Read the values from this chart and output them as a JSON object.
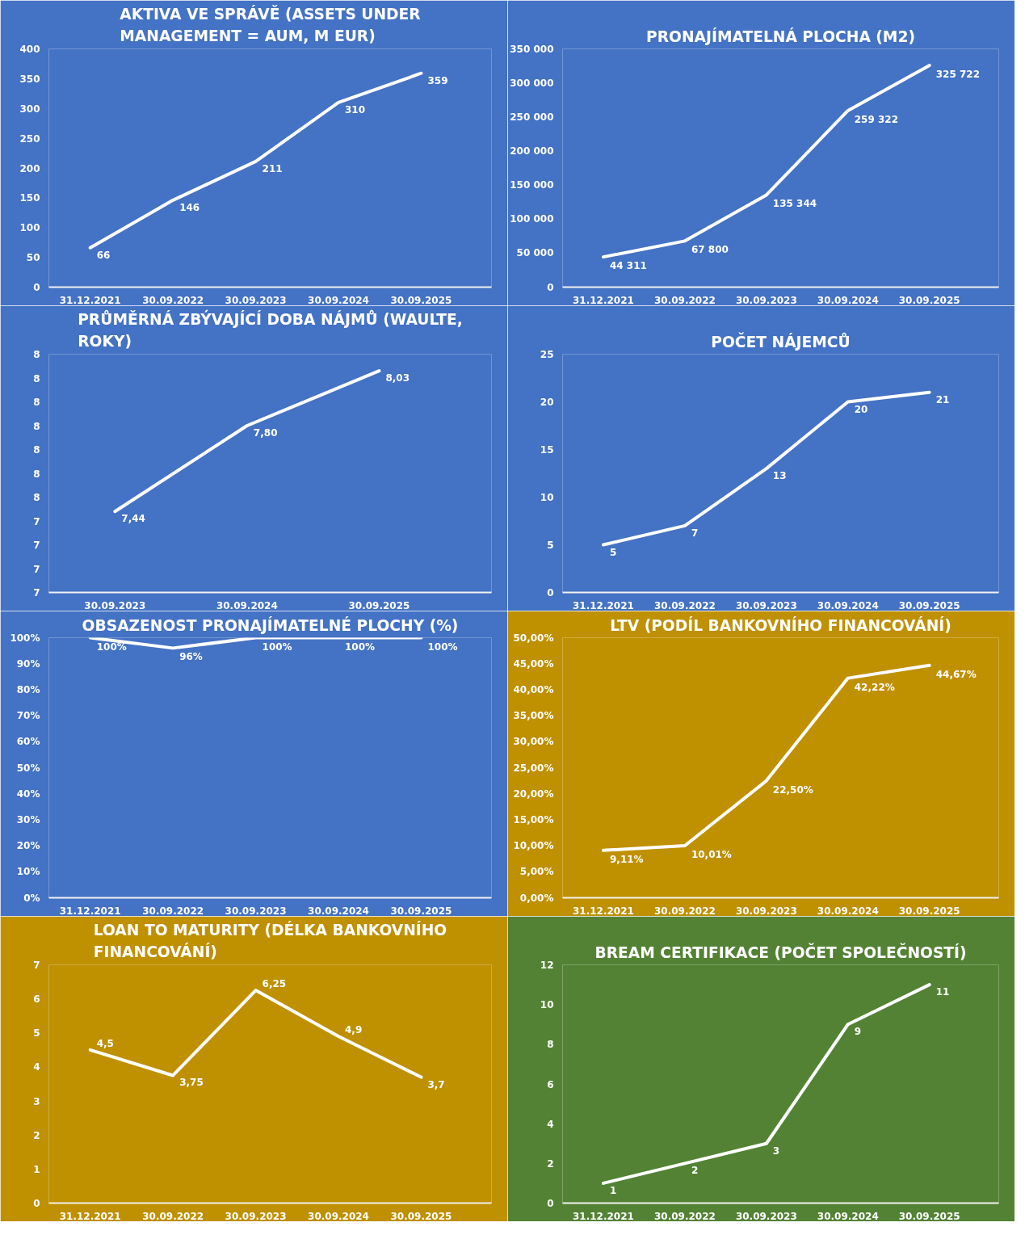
{
  "chart_data": [
    {
      "type": "line",
      "title": "AKTIVA VE SPRÁVĚ (ASSETS UNDER MANAGEMENT = AUM, M EUR)",
      "categories": [
        "31.12.2021",
        "30.09.2022",
        "30.09.2023",
        "30.09.2024",
        "30.09.2025"
      ],
      "series": [
        {
          "color": "#ffffff",
          "values": [
            66,
            146,
            211,
            310,
            359
          ],
          "value_labels": [
            "66",
            "146",
            "211",
            "310",
            "359"
          ]
        }
      ],
      "ylim": [
        0,
        400
      ],
      "yticks": [
        0,
        50,
        100,
        150,
        200,
        250,
        300,
        350,
        400
      ],
      "grid": false
    },
    {
      "type": "line",
      "title": "PRONAJÍMATELNÁ PLOCHA (M2)",
      "categories": [
        "31.12.2021",
        "30.09.2022",
        "30.09.2023",
        "30.09.2024",
        "30.09.2025"
      ],
      "series": [
        {
          "color": "#ffffff",
          "values": [
            44311,
            67800,
            135344,
            259322,
            325722
          ],
          "value_labels": [
            "44 311",
            "67 800",
            "135 344",
            "259 322",
            "325 722"
          ]
        }
      ],
      "ylim": [
        0,
        350000
      ],
      "yticks": [
        0,
        {
          "value": 50000,
          "label": "50 000"
        },
        {
          "value": 100000,
          "label": "100 000"
        },
        {
          "value": 150000,
          "label": "150 000"
        },
        {
          "value": 200000,
          "label": "200 000"
        },
        {
          "value": 250000,
          "label": "250 000"
        },
        {
          "value": 300000,
          "label": "300 000"
        },
        {
          "value": 350000,
          "label": "350 000"
        }
      ],
      "grid": false
    },
    {
      "type": "line",
      "title": "PRŮMĚRNÁ ZBÝVAJÍCÍ DOBA NÁJMŮ (WAULTE, ROKY)",
      "categories": [
        "30.09.2023",
        "30.09.2024",
        "30.09.2025"
      ],
      "series": [
        {
          "color": "#ffffff",
          "values": [
            7.44,
            7.8,
            8.03
          ],
          "value_labels": [
            "7,44",
            "7,80",
            "8,03"
          ]
        }
      ],
      "ylim": [
        7.1,
        8.1
      ],
      "yticks": [
        {
          "value": 7.1,
          "label": "7"
        },
        {
          "value": 7.2,
          "label": "7"
        },
        {
          "value": 7.3,
          "label": "7"
        },
        {
          "value": 7.4,
          "label": "7"
        },
        {
          "value": 7.5,
          "label": "8"
        },
        {
          "value": 7.6,
          "label": "8"
        },
        {
          "value": 7.7,
          "label": "8"
        },
        {
          "value": 7.8,
          "label": "8"
        },
        {
          "value": 7.9,
          "label": "8"
        },
        {
          "value": 8.0,
          "label": "8"
        },
        {
          "value": 8.1,
          "label": "8"
        }
      ],
      "grid": false
    },
    {
      "type": "line",
      "title": "POČET NÁJEMCŮ",
      "categories": [
        "31.12.2021",
        "30.09.2022",
        "30.09.2023",
        "30.09.2024",
        "30.09.2025"
      ],
      "series": [
        {
          "color": "#ffffff",
          "values": [
            5,
            7,
            13,
            20,
            21
          ],
          "value_labels": [
            "5",
            "7",
            "13",
            "20",
            "21"
          ]
        }
      ],
      "ylim": [
        0,
        25
      ],
      "yticks": [
        0,
        5,
        10,
        15,
        20,
        25
      ],
      "grid": false
    },
    {
      "type": "line",
      "title": "OBSAZENOST PRONAJÍMATELNÉ PLOCHY (%)",
      "categories": [
        "31.12.2021",
        "30.09.2022",
        "30.09.2023",
        "30.09.2024",
        "30.09.2025"
      ],
      "series": [
        {
          "color": "#ffffff",
          "values": [
            100,
            96,
            100,
            100,
            100
          ],
          "value_labels": [
            "100%",
            "96%",
            "100%",
            "100%",
            "100%"
          ]
        }
      ],
      "ylim": [
        0,
        100
      ],
      "yticks": [
        {
          "value": 0,
          "label": "0%"
        },
        {
          "value": 10,
          "label": "10%"
        },
        {
          "value": 20,
          "label": "20%"
        },
        {
          "value": 30,
          "label": "30%"
        },
        {
          "value": 40,
          "label": "40%"
        },
        {
          "value": 50,
          "label": "50%"
        },
        {
          "value": 60,
          "label": "60%"
        },
        {
          "value": 70,
          "label": "70%"
        },
        {
          "value": 80,
          "label": "80%"
        },
        {
          "value": 90,
          "label": "90%"
        },
        {
          "value": 100,
          "label": "100%"
        }
      ],
      "grid": false
    },
    {
      "type": "line",
      "title": "LTV (PODÍL BANKOVNÍHO FINANCOVÁNÍ)",
      "categories": [
        "31.12.2021",
        "30.09.2022",
        "30.09.2023",
        "30.09.2024",
        "30.09.2025"
      ],
      "series": [
        {
          "color": "#ffffff",
          "values": [
            9.11,
            10.01,
            22.5,
            42.22,
            44.67
          ],
          "value_labels": [
            "9,11%",
            "10,01%",
            "22,50%",
            "42,22%",
            "44,67%"
          ]
        }
      ],
      "ylim": [
        0,
        50
      ],
      "yticks": [
        {
          "value": 0,
          "label": "0,00%"
        },
        {
          "value": 5,
          "label": "5,00%"
        },
        {
          "value": 10,
          "label": "10,00%"
        },
        {
          "value": 15,
          "label": "15,00%"
        },
        {
          "value": 20,
          "label": "20,00%"
        },
        {
          "value": 25,
          "label": "25,00%"
        },
        {
          "value": 30,
          "label": "30,00%"
        },
        {
          "value": 35,
          "label": "35,00%"
        },
        {
          "value": 40,
          "label": "40,00%"
        },
        {
          "value": 45,
          "label": "45,00%"
        },
        {
          "value": 50,
          "label": "50,00%"
        }
      ],
      "grid": false
    },
    {
      "type": "line",
      "title": "LOAN TO MATURITY (DÉLKA BANKOVNÍHO FINANCOVÁNÍ)",
      "categories": [
        "31.12.2021",
        "30.09.2022",
        "30.09.2023",
        "30.09.2024",
        "30.09.2025"
      ],
      "series": [
        {
          "color": "#ffffff",
          "values": [
            4.5,
            3.75,
            6.25,
            4.9,
            3.7
          ],
          "value_labels": [
            "4,5",
            "3,75",
            "6,25",
            "4,9",
            "3,7"
          ]
        }
      ],
      "ylim": [
        0,
        7
      ],
      "yticks": [
        0,
        1,
        2,
        3,
        4,
        5,
        6,
        7
      ],
      "grid": false
    },
    {
      "type": "line",
      "title": "BREAM CERTIFIKACE (POČET SPOLEČNOSTÍ)",
      "categories": [
        "31.12.2021",
        "30.09.2022",
        "30.09.2023",
        "30.09.2024",
        "30.09.2025"
      ],
      "series": [
        {
          "color": "#ffffff",
          "values": [
            1,
            2,
            3,
            9,
            11
          ],
          "value_labels": [
            "1",
            "2",
            "3",
            "9",
            "11"
          ]
        }
      ],
      "ylim": [
        0,
        12
      ],
      "yticks": [
        0,
        2,
        4,
        6,
        8,
        10,
        12
      ],
      "grid": false
    }
  ]
}
